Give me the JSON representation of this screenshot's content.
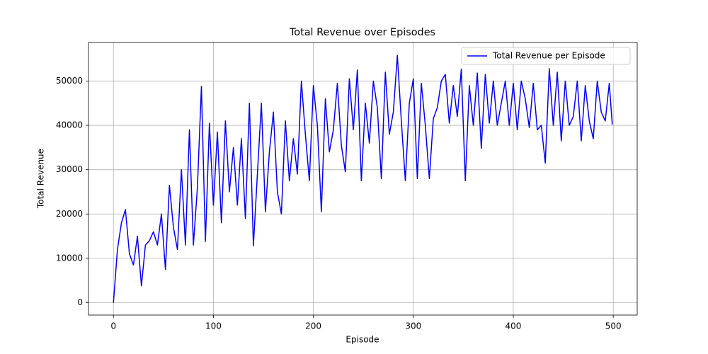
{
  "chart_data": {
    "type": "line",
    "title": "Total Revenue over Episodes",
    "xlabel": "Episode",
    "ylabel": "Total Revenue",
    "x": [
      0,
      4,
      8,
      12,
      16,
      20,
      24,
      28,
      32,
      36,
      40,
      44,
      48,
      52,
      56,
      60,
      64,
      68,
      72,
      76,
      80,
      84,
      88,
      92,
      96,
      100,
      104,
      108,
      112,
      116,
      120,
      124,
      128,
      132,
      136,
      140,
      144,
      148,
      152,
      156,
      160,
      164,
      168,
      172,
      176,
      180,
      184,
      188,
      192,
      196,
      200,
      204,
      208,
      212,
      216,
      220,
      224,
      228,
      232,
      236,
      240,
      244,
      248,
      252,
      256,
      260,
      264,
      268,
      272,
      276,
      280,
      284,
      288,
      292,
      296,
      300,
      304,
      308,
      312,
      316,
      320,
      324,
      328,
      332,
      336,
      340,
      344,
      348,
      352,
      356,
      360,
      364,
      368,
      372,
      376,
      380,
      384,
      388,
      392,
      396,
      400,
      404,
      408,
      412,
      416,
      420,
      424,
      428,
      432,
      436,
      440,
      444,
      448,
      452,
      456,
      460,
      464,
      468,
      472,
      476,
      480,
      484,
      488,
      492,
      496,
      499
    ],
    "series": [
      {
        "name": "Total Revenue per Episode",
        "color": "#0000ff",
        "values": [
          0,
          12000,
          18000,
          21000,
          11000,
          8500,
          15000,
          3800,
          13000,
          14000,
          16000,
          13000,
          20000,
          7500,
          26500,
          17000,
          12000,
          30000,
          13000,
          39000,
          13000,
          26000,
          48800,
          13800,
          40500,
          22000,
          38500,
          18000,
          41000,
          25000,
          35000,
          22000,
          37000,
          19000,
          45000,
          12800,
          29000,
          45000,
          20500,
          34000,
          43000,
          25000,
          20000,
          41000,
          27500,
          37000,
          29000,
          50000,
          38000,
          27500,
          49000,
          40000,
          20500,
          46000,
          34000,
          39000,
          49500,
          35500,
          29500,
          50500,
          39000,
          52500,
          27500,
          45000,
          36000,
          50000,
          44000,
          28000,
          52000,
          38000,
          43000,
          55800,
          41000,
          27500,
          45000,
          50500,
          28000,
          49500,
          40000,
          28000,
          41500,
          44000,
          50000,
          51500,
          40500,
          49000,
          42000,
          52700,
          27500,
          49000,
          40000,
          51800,
          34800,
          51500,
          40500,
          50000,
          40000,
          45000,
          50000,
          40000,
          49500,
          39000,
          50000,
          46000,
          39500,
          49500,
          39000,
          40000,
          31500,
          52800,
          40000,
          52000,
          36500,
          50000,
          40000,
          42000,
          50000,
          36500,
          49000,
          41000,
          37000,
          50000,
          43000,
          41000,
          49500,
          40200
        ]
      }
    ],
    "xlim": [
      -24.95,
      523.95
    ],
    "ylim": [
      -2795,
      58695
    ],
    "xticks": [
      0,
      100,
      200,
      300,
      400,
      500
    ],
    "yticks": [
      0,
      10000,
      20000,
      30000,
      40000,
      50000
    ],
    "grid": true,
    "legend": "upper right"
  }
}
